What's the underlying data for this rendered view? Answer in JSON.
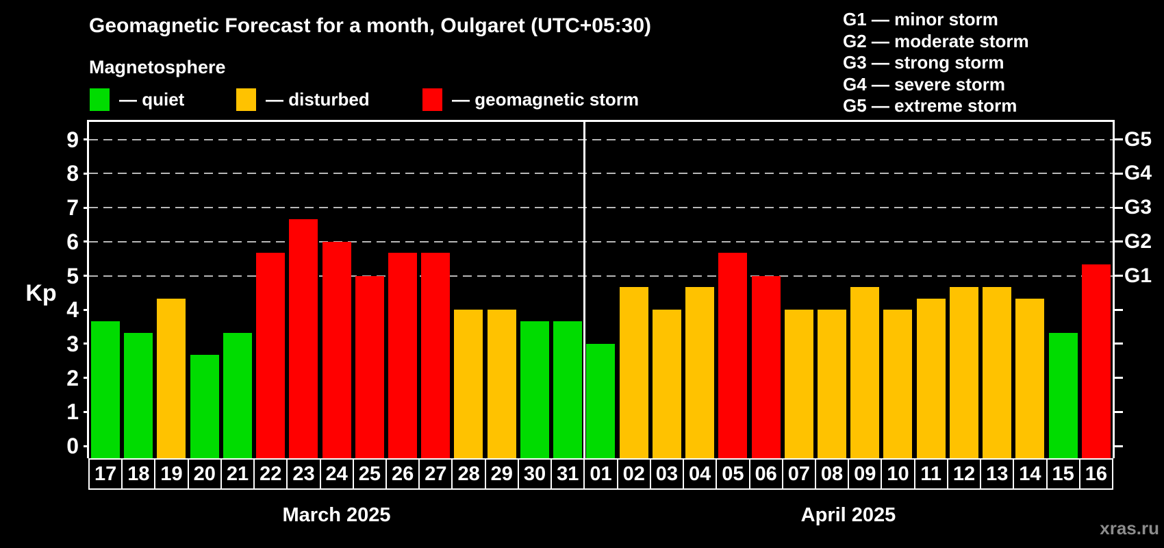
{
  "title": "Geomagnetic Forecast for a month, Oulgaret (UTC+05:30)",
  "subtitle": "Magnetosphere",
  "legend": {
    "quiet": "— quiet",
    "disturbed": "— disturbed",
    "storm": "— geomagnetic storm"
  },
  "storm_scale_legend": [
    "G1 — minor storm",
    "G2 — moderate storm",
    "G3 — strong storm",
    "G4 — severe storm",
    "G5 — extreme storm"
  ],
  "axis": {
    "y_label": "Kp",
    "y_ticks": [
      "0",
      "1",
      "2",
      "3",
      "4",
      "5",
      "6",
      "7",
      "8",
      "9"
    ],
    "right_labels": [
      "G1",
      "G2",
      "G3",
      "G4",
      "G5"
    ]
  },
  "colors": {
    "quiet": "#00DC00",
    "disturbed": "#FFC200",
    "storm": "#FF0000",
    "grid": "#B8B8B8",
    "watermark": "#8C8C8C"
  },
  "watermark": "xras.ru",
  "chart_data": {
    "type": "bar",
    "title": "Geomagnetic Forecast for a month, Oulgaret (UTC+05:30)",
    "xlabel": "",
    "ylabel": "Kp",
    "ylim": [
      0,
      9.5
    ],
    "grid": true,
    "gridlines_at": [
      5,
      6,
      7,
      8,
      9
    ],
    "legend_position": "top",
    "months": [
      {
        "label": "March 2025",
        "days": [
          {
            "day": "17",
            "kp": 3.67,
            "level": "quiet"
          },
          {
            "day": "18",
            "kp": 3.33,
            "level": "quiet"
          },
          {
            "day": "19",
            "kp": 4.33,
            "level": "disturbed"
          },
          {
            "day": "20",
            "kp": 2.67,
            "level": "quiet"
          },
          {
            "day": "21",
            "kp": 3.33,
            "level": "quiet"
          },
          {
            "day": "22",
            "kp": 5.67,
            "level": "storm"
          },
          {
            "day": "23",
            "kp": 6.67,
            "level": "storm"
          },
          {
            "day": "24",
            "kp": 6.0,
            "level": "storm"
          },
          {
            "day": "25",
            "kp": 5.0,
            "level": "storm"
          },
          {
            "day": "26",
            "kp": 5.67,
            "level": "storm"
          },
          {
            "day": "27",
            "kp": 5.67,
            "level": "storm"
          },
          {
            "day": "28",
            "kp": 4.0,
            "level": "disturbed"
          },
          {
            "day": "29",
            "kp": 4.0,
            "level": "disturbed"
          },
          {
            "day": "30",
            "kp": 3.67,
            "level": "quiet"
          },
          {
            "day": "31",
            "kp": 3.67,
            "level": "quiet"
          }
        ]
      },
      {
        "label": "April 2025",
        "days": [
          {
            "day": "01",
            "kp": 3.0,
            "level": "quiet"
          },
          {
            "day": "02",
            "kp": 4.67,
            "level": "disturbed"
          },
          {
            "day": "03",
            "kp": 4.0,
            "level": "disturbed"
          },
          {
            "day": "04",
            "kp": 4.67,
            "level": "disturbed"
          },
          {
            "day": "05",
            "kp": 5.67,
            "level": "storm"
          },
          {
            "day": "06",
            "kp": 5.0,
            "level": "storm"
          },
          {
            "day": "07",
            "kp": 4.0,
            "level": "disturbed"
          },
          {
            "day": "08",
            "kp": 4.0,
            "level": "disturbed"
          },
          {
            "day": "09",
            "kp": 4.67,
            "level": "disturbed"
          },
          {
            "day": "10",
            "kp": 4.0,
            "level": "disturbed"
          },
          {
            "day": "11",
            "kp": 4.33,
            "level": "disturbed"
          },
          {
            "day": "12",
            "kp": 4.67,
            "level": "disturbed"
          },
          {
            "day": "13",
            "kp": 4.67,
            "level": "disturbed"
          },
          {
            "day": "14",
            "kp": 4.33,
            "level": "disturbed"
          },
          {
            "day": "15",
            "kp": 3.33,
            "level": "quiet"
          },
          {
            "day": "16",
            "kp": 5.33,
            "level": "storm"
          }
        ]
      }
    ]
  }
}
